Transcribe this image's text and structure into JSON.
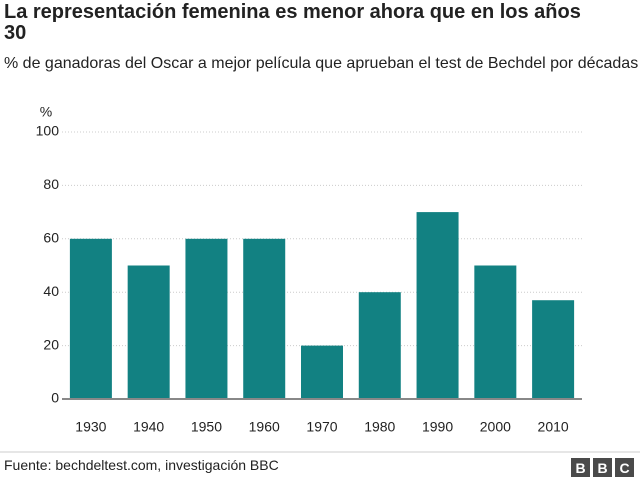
{
  "chart_data": {
    "type": "bar",
    "title": "La representación femenina es menor ahora que en los años 30",
    "subtitle": "% de ganadoras del Oscar a mejor película que aprueban el test de Bechdel por décadas",
    "y_label": "%",
    "categories": [
      "1930",
      "1940",
      "1950",
      "1960",
      "1970",
      "1980",
      "1990",
      "2000",
      "2010"
    ],
    "values": [
      60,
      50,
      60,
      60,
      20,
      40,
      70,
      50,
      37
    ],
    "color": "#128182",
    "ylim": [
      0,
      100
    ],
    "yticks": [
      0,
      20,
      40,
      60,
      80,
      100
    ],
    "grid": true,
    "source": "Fuente: bechdeltest.com, investigación BBC",
    "logo": [
      "B",
      "B",
      "C"
    ]
  }
}
